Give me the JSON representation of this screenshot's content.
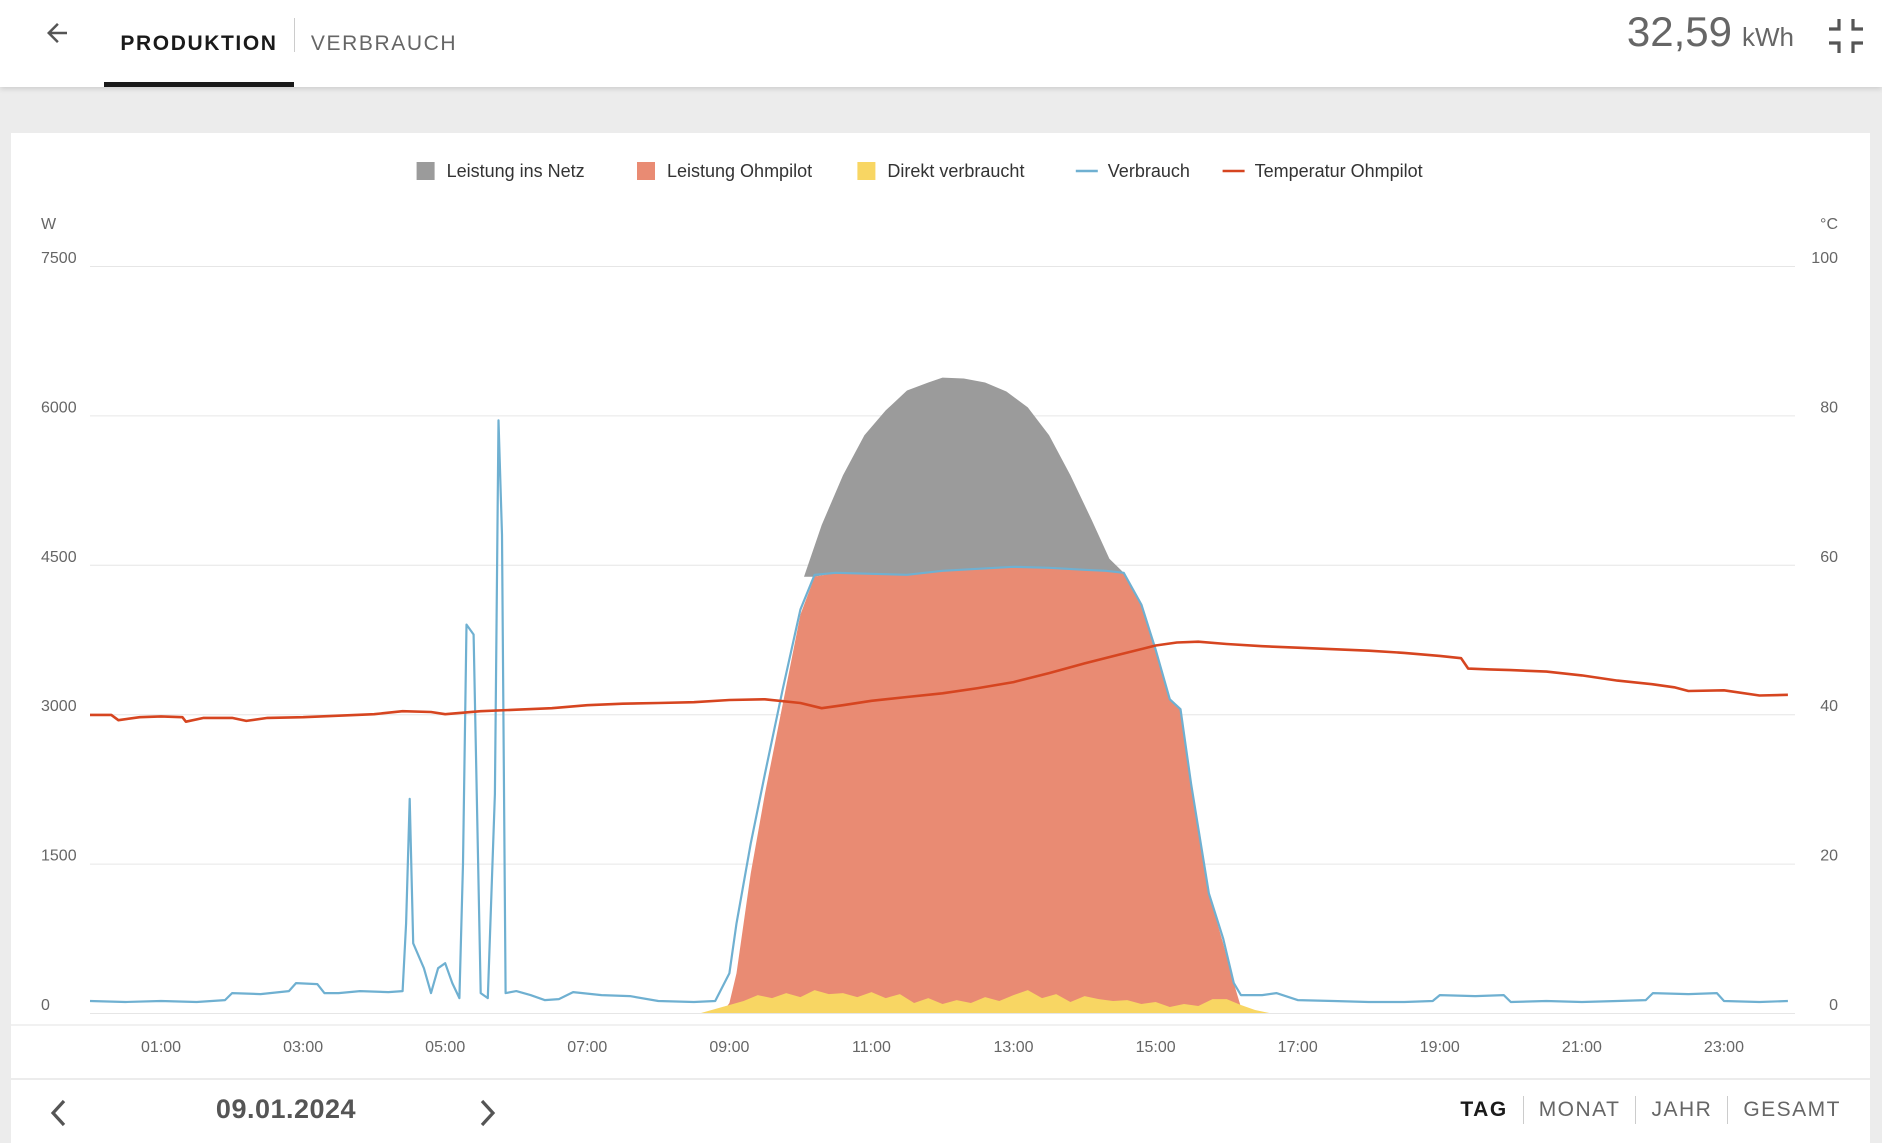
{
  "header": {
    "tabs": [
      {
        "label": "PRODUKTION",
        "active": true
      },
      {
        "label": "VERBRAUCH",
        "active": false
      }
    ],
    "energy_value": "32,59",
    "energy_unit": "kWh",
    "icons": {
      "back": "arrow-left-icon",
      "collapse": "collapse-icon"
    }
  },
  "footer": {
    "date": "09.01.2024",
    "periods": [
      {
        "label": "TAG",
        "active": true
      },
      {
        "label": "MONAT",
        "active": false
      },
      {
        "label": "JAHR",
        "active": false
      },
      {
        "label": "GESAMT",
        "active": false
      }
    ]
  },
  "colors": {
    "grid_feed": "#9b9b9b",
    "ohmpilot": "#e98b73",
    "self_consumed": "#f8d663",
    "consumption": "#6fb0d1",
    "temperature": "#d64520"
  },
  "chart_data": {
    "type": "area",
    "legend": [
      {
        "name": "Leistung ins Netz",
        "kind": "area",
        "color": "#9b9b9b"
      },
      {
        "name": "Leistung Ohmpilot",
        "kind": "area",
        "color": "#e98b73"
      },
      {
        "name": "Direkt verbraucht",
        "kind": "area",
        "color": "#f8d663"
      },
      {
        "name": "Verbrauch",
        "kind": "line",
        "color": "#6fb0d1"
      },
      {
        "name": "Temperatur Ohmpilot",
        "kind": "line",
        "color": "#d64520"
      }
    ],
    "legend_position": "top-center",
    "y_left": {
      "unit": "W",
      "ticks": [
        "0",
        "1500",
        "3000",
        "4500",
        "6000",
        "7500"
      ],
      "range": [
        0,
        7500
      ]
    },
    "y_right": {
      "unit": "°C",
      "ticks": [
        "0",
        "20",
        "40",
        "60",
        "80",
        "100"
      ],
      "range": [
        0,
        100
      ]
    },
    "x_ticks": [
      "01:00",
      "03:00",
      "05:00",
      "07:00",
      "09:00",
      "11:00",
      "13:00",
      "15:00",
      "17:00",
      "19:00",
      "21:00",
      "23:00"
    ],
    "x_range_hours": [
      0,
      24
    ],
    "grid": true,
    "series": [
      {
        "name": "Direkt verbraucht",
        "axis": "left",
        "points": [
          [
            8.6,
            0
          ],
          [
            8.8,
            40
          ],
          [
            9.0,
            80
          ],
          [
            9.2,
            120
          ],
          [
            9.4,
            180
          ],
          [
            9.6,
            150
          ],
          [
            9.8,
            200
          ],
          [
            10.0,
            160
          ],
          [
            10.2,
            230
          ],
          [
            10.4,
            190
          ],
          [
            10.6,
            200
          ],
          [
            10.8,
            160
          ],
          [
            11.0,
            210
          ],
          [
            11.2,
            150
          ],
          [
            11.4,
            190
          ],
          [
            11.6,
            100
          ],
          [
            11.8,
            150
          ],
          [
            12.0,
            90
          ],
          [
            12.2,
            130
          ],
          [
            12.4,
            100
          ],
          [
            12.6,
            160
          ],
          [
            12.8,
            120
          ],
          [
            13.0,
            180
          ],
          [
            13.2,
            230
          ],
          [
            13.4,
            150
          ],
          [
            13.6,
            190
          ],
          [
            13.8,
            110
          ],
          [
            14.0,
            170
          ],
          [
            14.2,
            140
          ],
          [
            14.4,
            120
          ],
          [
            14.6,
            130
          ],
          [
            14.8,
            90
          ],
          [
            15.0,
            110
          ],
          [
            15.2,
            60
          ],
          [
            15.4,
            90
          ],
          [
            15.6,
            70
          ],
          [
            15.8,
            140
          ],
          [
            16.0,
            140
          ],
          [
            16.2,
            80
          ],
          [
            16.4,
            30
          ],
          [
            16.6,
            0
          ]
        ]
      },
      {
        "name": "Leistung Ohmpilot",
        "axis": "left",
        "points": [
          [
            8.9,
            0
          ],
          [
            9.0,
            100
          ],
          [
            9.1,
            400
          ],
          [
            9.3,
            1400
          ],
          [
            9.5,
            2200
          ],
          [
            9.75,
            3100
          ],
          [
            10.0,
            4000
          ],
          [
            10.2,
            4380
          ],
          [
            10.5,
            4420
          ],
          [
            11.0,
            4410
          ],
          [
            11.5,
            4400
          ],
          [
            12.0,
            4440
          ],
          [
            12.5,
            4460
          ],
          [
            13.0,
            4480
          ],
          [
            13.5,
            4470
          ],
          [
            14.0,
            4450
          ],
          [
            14.3,
            4440
          ],
          [
            14.55,
            4420
          ],
          [
            14.8,
            4100
          ],
          [
            15.0,
            3650
          ],
          [
            15.2,
            3150
          ],
          [
            15.35,
            3050
          ],
          [
            15.5,
            2300
          ],
          [
            15.75,
            1200
          ],
          [
            15.95,
            700
          ],
          [
            16.1,
            300
          ],
          [
            16.2,
            60
          ],
          [
            16.3,
            0
          ]
        ]
      },
      {
        "name": "Leistung ins Netz",
        "axis": "left",
        "points": [
          [
            10.05,
            4380
          ],
          [
            10.3,
            4900
          ],
          [
            10.6,
            5400
          ],
          [
            10.9,
            5800
          ],
          [
            11.2,
            6050
          ],
          [
            11.5,
            6250
          ],
          [
            11.8,
            6330
          ],
          [
            12.0,
            6380
          ],
          [
            12.3,
            6370
          ],
          [
            12.6,
            6330
          ],
          [
            12.9,
            6240
          ],
          [
            13.2,
            6080
          ],
          [
            13.5,
            5800
          ],
          [
            13.8,
            5400
          ],
          [
            14.1,
            4950
          ],
          [
            14.35,
            4560
          ],
          [
            14.55,
            4420
          ]
        ]
      },
      {
        "name": "Verbrauch",
        "axis": "left",
        "points": [
          [
            0.0,
            120
          ],
          [
            0.5,
            110
          ],
          [
            1.0,
            120
          ],
          [
            1.5,
            110
          ],
          [
            1.9,
            130
          ],
          [
            2.0,
            200
          ],
          [
            2.4,
            190
          ],
          [
            2.8,
            220
          ],
          [
            2.9,
            300
          ],
          [
            3.2,
            290
          ],
          [
            3.3,
            200
          ],
          [
            3.5,
            200
          ],
          [
            3.8,
            220
          ],
          [
            4.2,
            210
          ],
          [
            4.4,
            220
          ],
          [
            4.45,
            900
          ],
          [
            4.5,
            2150
          ],
          [
            4.55,
            700
          ],
          [
            4.7,
            450
          ],
          [
            4.8,
            200
          ],
          [
            4.9,
            450
          ],
          [
            5.0,
            500
          ],
          [
            5.1,
            300
          ],
          [
            5.2,
            150
          ],
          [
            5.25,
            1500
          ],
          [
            5.3,
            3900
          ],
          [
            5.4,
            3800
          ],
          [
            5.5,
            200
          ],
          [
            5.6,
            150
          ],
          [
            5.7,
            2200
          ],
          [
            5.75,
            5950
          ],
          [
            5.8,
            4800
          ],
          [
            5.85,
            200
          ],
          [
            6.0,
            220
          ],
          [
            6.2,
            180
          ],
          [
            6.4,
            130
          ],
          [
            6.6,
            140
          ],
          [
            6.8,
            210
          ],
          [
            7.2,
            180
          ],
          [
            7.6,
            170
          ],
          [
            8.0,
            120
          ],
          [
            8.5,
            110
          ],
          [
            8.8,
            120
          ],
          [
            9.0,
            400
          ],
          [
            9.1,
            900
          ],
          [
            9.3,
            1700
          ],
          [
            9.5,
            2400
          ],
          [
            9.75,
            3250
          ],
          [
            10.0,
            4050
          ],
          [
            10.2,
            4400
          ],
          [
            10.5,
            4420
          ],
          [
            11.0,
            4410
          ],
          [
            11.5,
            4400
          ],
          [
            12.0,
            4440
          ],
          [
            12.5,
            4460
          ],
          [
            13.0,
            4480
          ],
          [
            13.5,
            4470
          ],
          [
            14.0,
            4450
          ],
          [
            14.3,
            4440
          ],
          [
            14.55,
            4420
          ],
          [
            14.8,
            4100
          ],
          [
            15.0,
            3650
          ],
          [
            15.2,
            3150
          ],
          [
            15.35,
            3050
          ],
          [
            15.5,
            2300
          ],
          [
            15.75,
            1200
          ],
          [
            15.95,
            750
          ],
          [
            16.1,
            300
          ],
          [
            16.2,
            180
          ],
          [
            16.5,
            180
          ],
          [
            16.7,
            200
          ],
          [
            17.0,
            130
          ],
          [
            17.5,
            120
          ],
          [
            18.0,
            110
          ],
          [
            18.5,
            110
          ],
          [
            18.9,
            120
          ],
          [
            19.0,
            180
          ],
          [
            19.5,
            170
          ],
          [
            19.9,
            180
          ],
          [
            20.0,
            110
          ],
          [
            20.5,
            120
          ],
          [
            21.0,
            110
          ],
          [
            21.5,
            120
          ],
          [
            21.9,
            130
          ],
          [
            22.0,
            200
          ],
          [
            22.5,
            190
          ],
          [
            22.9,
            200
          ],
          [
            23.0,
            120
          ],
          [
            23.5,
            110
          ],
          [
            23.9,
            120
          ]
        ]
      },
      {
        "name": "Temperatur Ohmpilot",
        "axis": "right",
        "points": [
          [
            0.0,
            39.9
          ],
          [
            0.3,
            39.9
          ],
          [
            0.4,
            39.2
          ],
          [
            0.7,
            39.6
          ],
          [
            1.0,
            39.7
          ],
          [
            1.3,
            39.6
          ],
          [
            1.35,
            39.0
          ],
          [
            1.6,
            39.5
          ],
          [
            2.0,
            39.5
          ],
          [
            2.2,
            39.1
          ],
          [
            2.5,
            39.5
          ],
          [
            3.0,
            39.6
          ],
          [
            3.5,
            39.8
          ],
          [
            4.0,
            40.0
          ],
          [
            4.4,
            40.4
          ],
          [
            4.8,
            40.3
          ],
          [
            5.0,
            40.0
          ],
          [
            5.5,
            40.4
          ],
          [
            6.0,
            40.6
          ],
          [
            6.5,
            40.8
          ],
          [
            7.0,
            41.2
          ],
          [
            7.5,
            41.4
          ],
          [
            8.0,
            41.5
          ],
          [
            8.5,
            41.6
          ],
          [
            9.0,
            41.9
          ],
          [
            9.5,
            42.0
          ],
          [
            10.0,
            41.5
          ],
          [
            10.3,
            40.8
          ],
          [
            10.6,
            41.2
          ],
          [
            11.0,
            41.8
          ],
          [
            11.5,
            42.3
          ],
          [
            12.0,
            42.8
          ],
          [
            12.5,
            43.5
          ],
          [
            13.0,
            44.3
          ],
          [
            13.5,
            45.5
          ],
          [
            14.0,
            46.8
          ],
          [
            14.5,
            48.0
          ],
          [
            15.0,
            49.2
          ],
          [
            15.3,
            49.6
          ],
          [
            15.6,
            49.7
          ],
          [
            16.0,
            49.4
          ],
          [
            16.5,
            49.1
          ],
          [
            17.0,
            48.9
          ],
          [
            17.5,
            48.7
          ],
          [
            18.0,
            48.5
          ],
          [
            18.5,
            48.2
          ],
          [
            19.0,
            47.8
          ],
          [
            19.3,
            47.5
          ],
          [
            19.4,
            46.1
          ],
          [
            19.7,
            46.0
          ],
          [
            20.0,
            45.9
          ],
          [
            20.5,
            45.7
          ],
          [
            21.0,
            45.2
          ],
          [
            21.5,
            44.5
          ],
          [
            22.0,
            44.0
          ],
          [
            22.3,
            43.6
          ],
          [
            22.5,
            43.1
          ],
          [
            23.0,
            43.2
          ],
          [
            23.5,
            42.5
          ],
          [
            23.9,
            42.6
          ]
        ]
      }
    ]
  }
}
